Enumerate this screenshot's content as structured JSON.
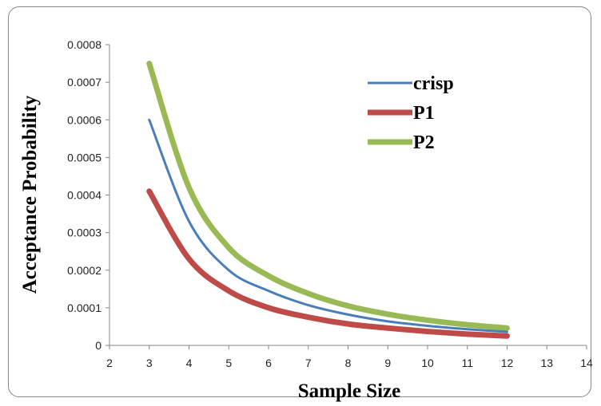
{
  "chart_data": {
    "type": "line",
    "title": "",
    "xlabel": "Sample Size",
    "ylabel": "Acceptance Probability",
    "xlim": [
      2,
      14
    ],
    "ylim": [
      0,
      0.0008
    ],
    "x_ticks": [
      "2",
      "3",
      "4",
      "5",
      "6",
      "7",
      "8",
      "9",
      "10",
      "11",
      "12",
      "13",
      "14"
    ],
    "y_ticks": [
      "0",
      "0.0001",
      "0.0002",
      "0.0003",
      "0.0004",
      "0.0005",
      "0.0006",
      "0.0007",
      "0.0008"
    ],
    "grid": false,
    "legend_position": "top-right",
    "x": [
      3,
      4,
      5,
      6,
      7,
      8,
      9,
      10,
      11,
      12
    ],
    "series": [
      {
        "name": "crisp",
        "color": "#4A7EBB",
        "values": [
          0.0006,
          0.00033,
          0.0002,
          0.000145,
          0.000107,
          8.2e-05,
          6.4e-05,
          5.2e-05,
          4.3e-05,
          3.6e-05
        ]
      },
      {
        "name": "P1",
        "color": "#BE4B48",
        "values": [
          0.00041,
          0.00023,
          0.000145,
          0.0001,
          7.5e-05,
          5.7e-05,
          4.6e-05,
          3.7e-05,
          3e-05,
          2.5e-05
        ]
      },
      {
        "name": "P2",
        "color": "#98B954",
        "values": [
          0.00075,
          0.00042,
          0.00026,
          0.000185,
          0.000138,
          0.000105,
          8.3e-05,
          6.7e-05,
          5.5e-05,
          4.6e-05
        ]
      }
    ]
  }
}
